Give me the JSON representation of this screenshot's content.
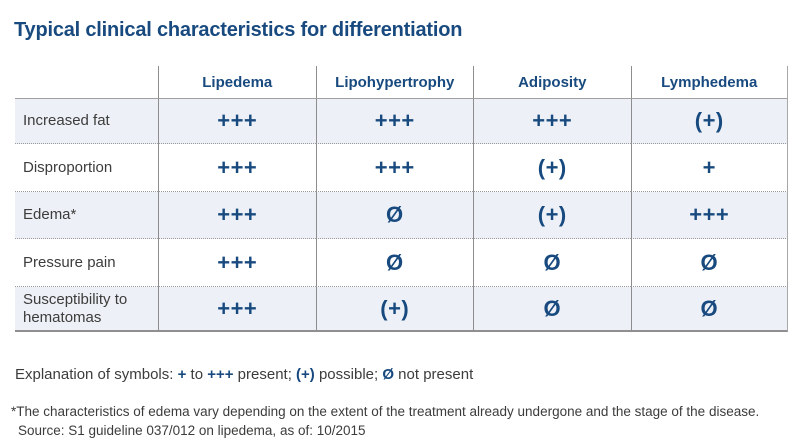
{
  "title": "Typical clinical characteristics for differentiation",
  "table": {
    "corner_label": "",
    "columns": [
      "Lipedema",
      "Lipohypertrophy",
      "Adiposity",
      "Lymphedema"
    ],
    "rows": [
      {
        "label": "Increased fat",
        "values": [
          "+++",
          "+++",
          "+++",
          "(+)"
        ]
      },
      {
        "label": "Disproportion",
        "values": [
          "+++",
          "+++",
          "(+)",
          "+"
        ]
      },
      {
        "label": "Edema*",
        "values": [
          "+++",
          "Ø",
          "(+)",
          "+++"
        ]
      },
      {
        "label": "Pressure pain",
        "values": [
          "+++",
          "Ø",
          "Ø",
          "Ø"
        ]
      },
      {
        "label": "Susceptibility to hematomas",
        "values": [
          "+++",
          "(+)",
          "Ø",
          "Ø"
        ]
      }
    ]
  },
  "legend": {
    "segments": [
      {
        "text": "Explanation of symbols: ",
        "emphasis": false
      },
      {
        "text": "+",
        "emphasis": true
      },
      {
        "text": " to ",
        "emphasis": false
      },
      {
        "text": "+++",
        "emphasis": true
      },
      {
        "text": " present; ",
        "emphasis": false
      },
      {
        "text": "(+)",
        "emphasis": true
      },
      {
        "text": " possible; ",
        "emphasis": false
      },
      {
        "text": "Ø",
        "emphasis": true
      },
      {
        "text": " not present",
        "emphasis": false
      }
    ]
  },
  "footnote": "*The characteristics of edema vary depending on the extent of the treatment already undergone and the stage of the disease.",
  "source": "Source: S1 guideline 037/012 on lipedema, as of: 10/2015",
  "colors": {
    "accent_blue": "#184a7f",
    "row_highlight": "#edf1f7",
    "text_gray": "#3c3c3b"
  }
}
